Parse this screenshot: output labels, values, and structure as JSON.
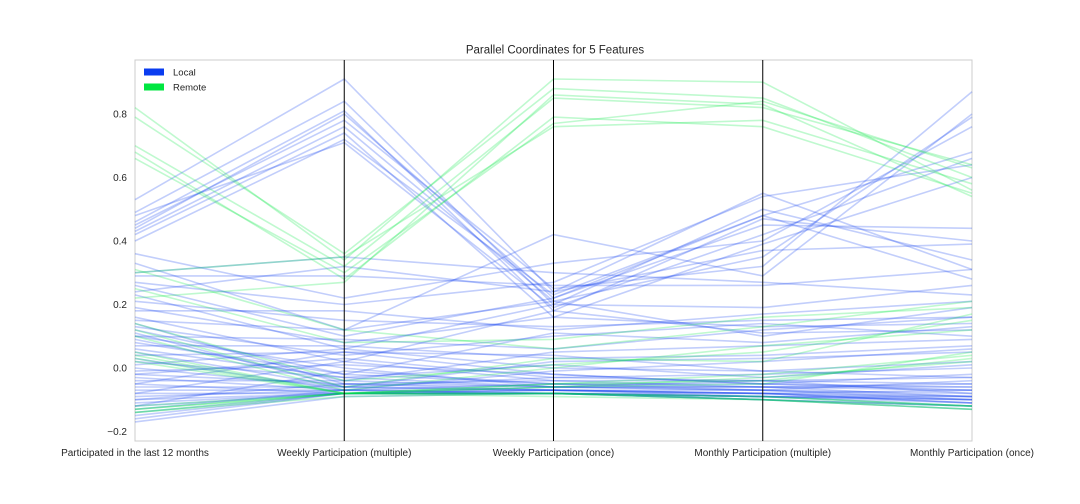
{
  "chart_data": {
    "type": "parallel-coordinates",
    "title": "Parallel Coordinates for 5 Features",
    "axes": [
      "Participated in the last 12 months",
      "Weekly Participation (multiple)",
      "Weekly Participation (once)",
      "Monthly Participation (multiple)",
      "Monthly Participation (once)"
    ],
    "ylim": [
      -0.23,
      0.97
    ],
    "yticks": [
      -0.2,
      0.0,
      0.2,
      0.4,
      0.6,
      0.8
    ],
    "ytick_labels": [
      "−0.2",
      "0.0",
      "0.2",
      "0.4",
      "0.6",
      "0.8"
    ],
    "grid": false,
    "legend": {
      "placement": "top-left",
      "entries": [
        {
          "name": "Local",
          "color": "#0a3cf0"
        },
        {
          "name": "Remote",
          "color": "#00e640"
        }
      ]
    },
    "series": [
      {
        "name": "Local",
        "color": "#0a3cf0",
        "lines": [
          [
            0.53,
            0.91,
            0.24,
            0.55,
            0.31
          ],
          [
            0.49,
            0.84,
            0.2,
            0.5,
            0.34
          ],
          [
            0.46,
            0.81,
            0.18,
            0.47,
            0.4
          ],
          [
            0.44,
            0.8,
            0.22,
            0.45,
            0.44
          ],
          [
            0.42,
            0.74,
            0.16,
            0.39,
            0.6
          ],
          [
            0.48,
            0.71,
            0.19,
            0.42,
            0.66
          ],
          [
            0.45,
            0.78,
            0.25,
            0.32,
            0.87
          ],
          [
            0.43,
            0.76,
            0.21,
            0.35,
            0.79
          ],
          [
            0.4,
            0.72,
            0.23,
            0.48,
            0.28
          ],
          [
            0.36,
            0.22,
            0.33,
            0.4,
            0.76
          ],
          [
            0.33,
            0.12,
            0.42,
            0.29,
            0.8
          ],
          [
            0.3,
            0.35,
            0.3,
            0.27,
            0.23
          ],
          [
            0.29,
            0.29,
            0.26,
            0.26,
            0.31
          ],
          [
            0.27,
            0.2,
            0.27,
            0.54,
            0.64
          ],
          [
            0.26,
            0.1,
            0.22,
            0.48,
            0.68
          ],
          [
            0.24,
            0.32,
            0.24,
            0.37,
            0.39
          ],
          [
            0.23,
            0.06,
            0.2,
            0.19,
            0.26
          ],
          [
            0.21,
            0.15,
            0.13,
            0.15,
            0.16
          ],
          [
            0.19,
            0.08,
            0.16,
            0.13,
            0.14
          ],
          [
            0.18,
            0.18,
            0.12,
            0.17,
            0.21
          ],
          [
            0.16,
            0.02,
            0.18,
            0.11,
            0.12
          ],
          [
            0.15,
            0.12,
            0.21,
            0.1,
            0.19
          ],
          [
            0.13,
            0.04,
            0.1,
            0.14,
            0.1
          ],
          [
            0.12,
            -0.02,
            0.11,
            0.08,
            0.13
          ],
          [
            0.1,
            0.09,
            0.06,
            0.12,
            0.16
          ],
          [
            0.09,
            -0.04,
            0.05,
            0.07,
            0.09
          ],
          [
            0.07,
            0.07,
            0.03,
            0.04,
            0.07
          ],
          [
            0.05,
            -0.06,
            0.02,
            0.03,
            0.05
          ],
          [
            0.04,
            0.05,
            0.04,
            -0.01,
            0.02
          ],
          [
            0.03,
            -0.07,
            -0.01,
            0.02,
            0.06
          ],
          [
            0.02,
            -0.03,
            0.01,
            -0.03,
            0.01
          ],
          [
            0.0,
            -0.06,
            -0.03,
            -0.02,
            0.0
          ],
          [
            -0.01,
            0.01,
            -0.02,
            -0.05,
            -0.02
          ],
          [
            -0.02,
            -0.05,
            -0.04,
            -0.04,
            -0.03
          ],
          [
            -0.03,
            -0.07,
            -0.05,
            -0.06,
            -0.05
          ],
          [
            -0.04,
            -0.04,
            -0.06,
            -0.07,
            -0.04
          ],
          [
            -0.05,
            -0.08,
            -0.06,
            -0.06,
            -0.06
          ],
          [
            -0.06,
            -0.06,
            -0.07,
            -0.08,
            -0.07
          ],
          [
            -0.07,
            -0.07,
            -0.07,
            -0.07,
            -0.08
          ],
          [
            -0.08,
            -0.08,
            -0.08,
            -0.08,
            -0.09
          ],
          [
            -0.09,
            -0.07,
            -0.08,
            -0.09,
            -0.1
          ],
          [
            -0.1,
            -0.08,
            -0.07,
            -0.08,
            -0.11
          ],
          [
            -0.11,
            -0.08,
            -0.08,
            -0.09,
            -0.09
          ],
          [
            -0.12,
            -0.08,
            -0.07,
            -0.09,
            -0.12
          ],
          [
            -0.13,
            -0.07,
            -0.08,
            -0.09,
            -0.1
          ],
          [
            -0.14,
            -0.08,
            -0.08,
            -0.1,
            -0.12
          ],
          [
            -0.15,
            -0.08,
            -0.08,
            -0.09,
            -0.11
          ],
          [
            -0.16,
            -0.08,
            -0.08,
            -0.1,
            -0.13
          ],
          [
            -0.17,
            -0.09,
            -0.08,
            -0.1,
            -0.12
          ],
          [
            0.1,
            0.0,
            -0.06,
            -0.04,
            -0.08
          ],
          [
            0.08,
            -0.02,
            -0.05,
            -0.05,
            -0.07
          ],
          [
            0.06,
            -0.03,
            -0.06,
            -0.06,
            -0.09
          ],
          [
            -0.02,
            0.03,
            -0.03,
            -0.04,
            -0.05
          ],
          [
            -0.05,
            0.05,
            -0.02,
            -0.05,
            -0.06
          ],
          [
            0.01,
            0.06,
            0.0,
            -0.01,
            -0.03
          ],
          [
            -0.08,
            0.02,
            -0.04,
            -0.06,
            -0.07
          ],
          [
            -0.12,
            -0.01,
            -0.05,
            -0.07,
            -0.09
          ],
          [
            0.14,
            -0.05,
            -0.07,
            -0.08,
            -0.1
          ],
          [
            0.11,
            -0.06,
            -0.07,
            -0.08,
            -0.11
          ],
          [
            -0.1,
            -0.05,
            -0.06,
            -0.07,
            -0.1
          ]
        ]
      },
      {
        "name": "Remote",
        "color": "#00e640",
        "lines": [
          [
            0.82,
            0.34,
            0.91,
            0.9,
            0.56
          ],
          [
            0.79,
            0.36,
            0.88,
            0.85,
            0.6
          ],
          [
            0.7,
            0.32,
            0.85,
            0.82,
            0.64
          ],
          [
            0.68,
            0.28,
            0.79,
            0.76,
            0.55
          ],
          [
            0.66,
            0.3,
            0.77,
            0.84,
            0.63
          ],
          [
            0.3,
            0.35,
            0.76,
            0.78,
            0.58
          ],
          [
            0.22,
            0.27,
            0.86,
            0.83,
            0.54
          ],
          [
            0.31,
            0.12,
            0.06,
            0.13,
            0.21
          ],
          [
            0.25,
            0.08,
            0.09,
            0.16,
            0.19
          ],
          [
            0.14,
            -0.04,
            0.01,
            0.05,
            0.15
          ],
          [
            0.12,
            -0.06,
            0.03,
            0.02,
            0.17
          ],
          [
            0.1,
            -0.07,
            0.0,
            0.07,
            0.12
          ],
          [
            0.05,
            -0.08,
            -0.05,
            -0.02,
            0.04
          ],
          [
            0.04,
            -0.08,
            -0.06,
            -0.03,
            0.02
          ],
          [
            0.03,
            -0.08,
            -0.05,
            -0.04,
            0.03
          ],
          [
            0.02,
            -0.08,
            -0.06,
            -0.05,
            0.05
          ],
          [
            -0.13,
            -0.08,
            -0.08,
            -0.09,
            -0.12
          ],
          [
            -0.13,
            -0.08,
            -0.08,
            -0.1,
            -0.13
          ],
          [
            -0.14,
            -0.09,
            -0.08,
            -0.1,
            -0.12
          ],
          [
            -0.14,
            -0.08,
            -0.09,
            -0.1,
            -0.13
          ],
          [
            -0.12,
            -0.08,
            -0.08,
            -0.09,
            -0.12
          ]
        ]
      }
    ]
  }
}
